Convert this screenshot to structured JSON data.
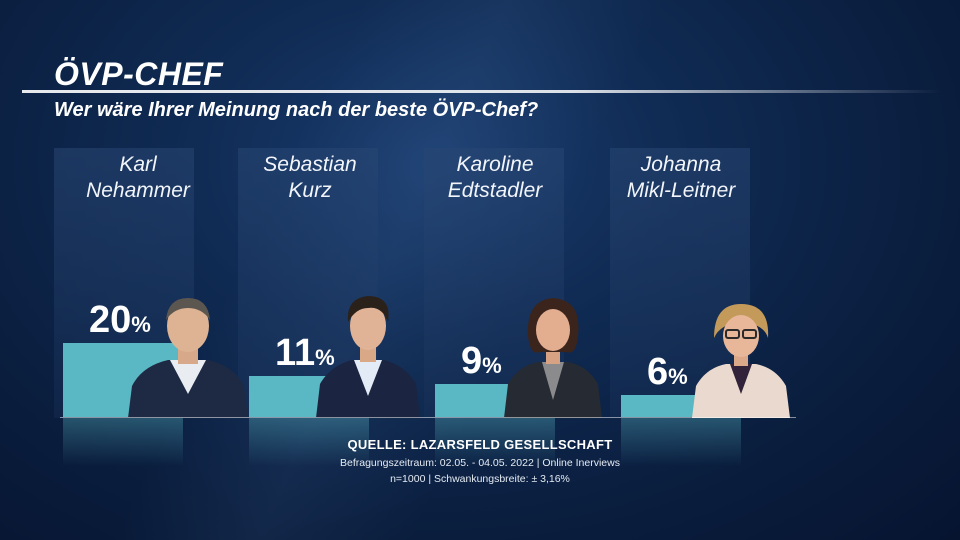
{
  "title": "ÖVP-CHEF",
  "subtitle": "Wer wäre Ihrer Meinung nach der beste ÖVP-Chef?",
  "percent_sign": "%",
  "source": {
    "label": "QUELLE:  LAZARSFELD GESELLSCHAFT",
    "line1": "Befragungszeitraum: 02.05. - 04.05. 2022 | Online Inerviews",
    "line2": "n=1000 |  Schwankungsbreite: ± 3,16%"
  },
  "colors": {
    "bar": "#5ab8c4",
    "background": "#0f2a52"
  },
  "chart_data": {
    "type": "bar",
    "categories": [
      "Karl Nehammer",
      "Sebastian Kurz",
      "Karoline Edtstadler",
      "Johanna Mikl-Leitner"
    ],
    "name_lines": [
      [
        "Karl",
        "Nehammer"
      ],
      [
        "Sebastian",
        "Kurz"
      ],
      [
        "Karoline",
        "Edtstadler"
      ],
      [
        "Johanna",
        "Mikl-Leitner"
      ]
    ],
    "values": [
      20,
      11,
      9,
      6
    ],
    "labels": [
      "20",
      "11",
      "9",
      "6"
    ],
    "unit": "%",
    "ylim": [
      0,
      26
    ],
    "grid": false,
    "legend": "none"
  }
}
